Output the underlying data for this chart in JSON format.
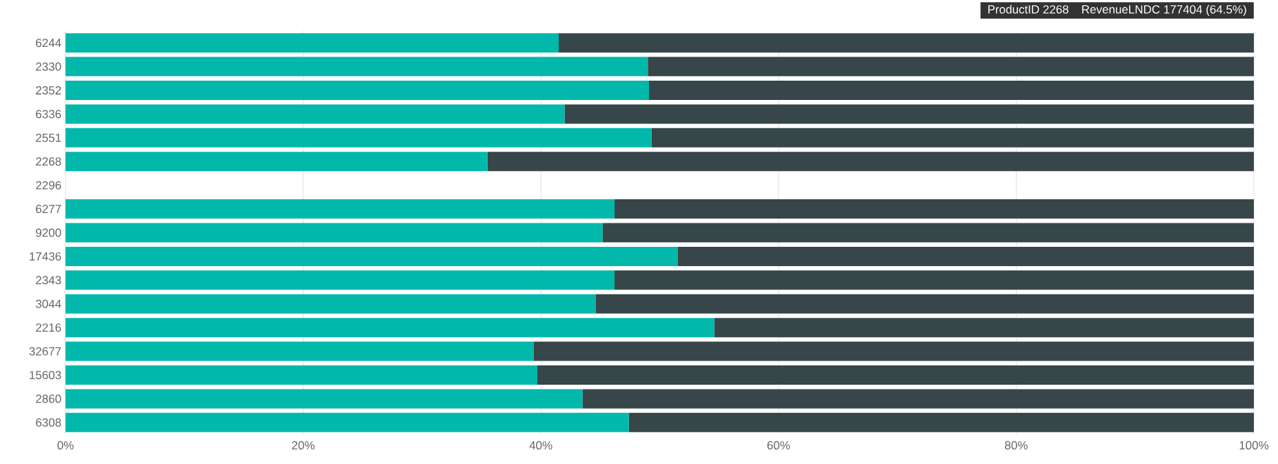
{
  "chart_data": {
    "type": "bar",
    "orientation": "horizontal",
    "stacked": true,
    "categories": [
      "6244",
      "2330",
      "2352",
      "6336",
      "2551",
      "2268",
      "2296",
      "6277",
      "9200",
      "17436",
      "2343",
      "3044",
      "2216",
      "32677",
      "15603",
      "2860",
      "6308"
    ],
    "series": [
      {
        "color": "#01b8aa",
        "values": [
          41.5,
          49.0,
          49.1,
          42.0,
          49.3,
          35.5,
          null,
          46.2,
          45.2,
          51.5,
          46.2,
          44.6,
          54.6,
          39.4,
          39.7,
          43.5,
          47.4
        ]
      },
      {
        "color": "#374649",
        "values": [
          58.5,
          51.0,
          50.9,
          58.0,
          50.7,
          64.5,
          null,
          53.8,
          54.8,
          48.5,
          53.8,
          55.4,
          45.4,
          60.6,
          60.3,
          56.5,
          52.6
        ]
      }
    ],
    "xlim": [
      0,
      100
    ],
    "xticks": [
      {
        "value": 0,
        "label": "0%"
      },
      {
        "value": 20,
        "label": "20%"
      },
      {
        "value": 40,
        "label": "40%"
      },
      {
        "value": 60,
        "label": "60%"
      },
      {
        "value": 80,
        "label": "80%"
      },
      {
        "value": 100,
        "label": "100%"
      }
    ],
    "grid": "x",
    "annotations": [
      "ProductID 2268",
      "RevenueLNDC 177404 (64.5%)"
    ]
  }
}
